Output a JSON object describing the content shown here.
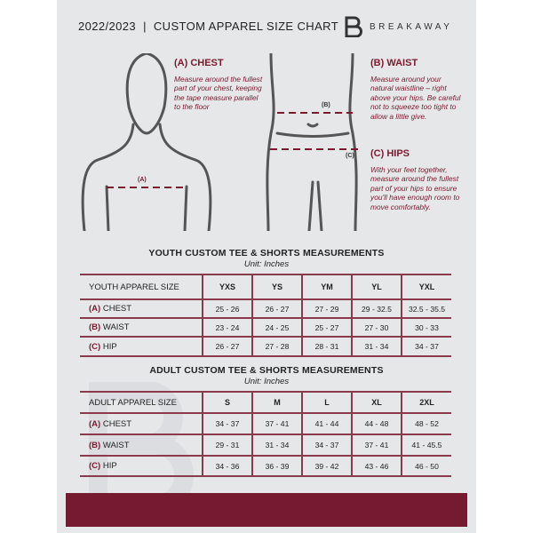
{
  "header": {
    "title": "2022/2023  |  CUSTOM APPAREL SIZE CHART",
    "brand": "BREAKAWAY"
  },
  "colors": {
    "accent": "#761a31",
    "panel": "#e6e7e9"
  },
  "chest": {
    "title": "(A) CHEST",
    "desc": "Measure around the fullest part of your chest, keeping the tape measure parallel to the floor",
    "marker": "(A)"
  },
  "waist": {
    "title": "(B) WAIST",
    "desc": "Measure around your natural waistline – right above your hips. Be careful not to squeeze too tight to allow a little give.",
    "marker": "(B)"
  },
  "hips": {
    "title": "(C) HIPS",
    "desc": "With your feet together, measure around the fullest part of your hips to ensure you'll have enough room to move comfortably.",
    "marker": "(C)"
  },
  "youth": {
    "title": "YOUTH CUSTOM TEE & SHORTS MEASUREMENTS",
    "unit": "Unit: Inches",
    "header": "YOUTH APPAREL SIZE",
    "sizes": [
      "YXS",
      "YS",
      "YM",
      "YL",
      "YXL"
    ],
    "rows": [
      {
        "code": "(A)",
        "name": "CHEST",
        "values": [
          "25 - 26",
          "26 - 27",
          "27 - 29",
          "29 - 32.5",
          "32.5 - 35.5"
        ]
      },
      {
        "code": "(B)",
        "name": "WAIST",
        "values": [
          "23 - 24",
          "24 - 25",
          "25 - 27",
          "27 - 30",
          "30 - 33"
        ]
      },
      {
        "code": "(C)",
        "name": "HIP",
        "values": [
          "26 - 27",
          "27 - 28",
          "28 - 31",
          "31 - 34",
          "34 - 37"
        ]
      }
    ]
  },
  "adult": {
    "title": "ADULT CUSTOM TEE & SHORTS MEASUREMENTS",
    "unit": "Unit: Inches",
    "header": "ADULT APPAREL SIZE",
    "sizes": [
      "S",
      "M",
      "L",
      "XL",
      "2XL"
    ],
    "rows": [
      {
        "code": "(A)",
        "name": "CHEST",
        "values": [
          "34 - 37",
          "37 - 41",
          "41 - 44",
          "44 - 48",
          "48 - 52"
        ]
      },
      {
        "code": "(B)",
        "name": "WAIST",
        "values": [
          "29 - 31",
          "31 - 34",
          "34 - 37",
          "37 - 41",
          "41 - 45.5"
        ]
      },
      {
        "code": "(C)",
        "name": "HIP",
        "values": [
          "34 - 36",
          "36 - 39",
          "39 - 42",
          "43 - 46",
          "46 - 50"
        ]
      }
    ]
  }
}
